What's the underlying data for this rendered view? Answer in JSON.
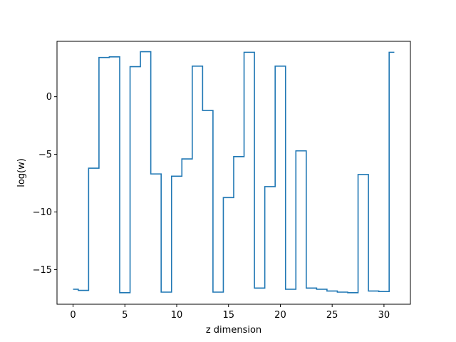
{
  "chart_data": {
    "type": "line",
    "drawstyle": "steps-mid",
    "xlabel": "z dimension",
    "ylabel": "log(w)",
    "xlim": [
      -1.55,
      32.55
    ],
    "ylim": [
      -18.0,
      4.8
    ],
    "xticks": [
      0,
      5,
      10,
      15,
      20,
      25,
      30
    ],
    "xtick_labels": [
      "0",
      "5",
      "10",
      "15",
      "20",
      "25",
      "30"
    ],
    "yticks": [
      -15,
      -10,
      -5,
      0
    ],
    "ytick_labels": [
      "−15",
      "−10",
      "−5",
      "0"
    ],
    "grid": false,
    "series": [
      {
        "color": "#1f77b4",
        "x": [
          0,
          1,
          2,
          3,
          4,
          5,
          6,
          7,
          8,
          9,
          10,
          11,
          12,
          13,
          14,
          15,
          16,
          17,
          18,
          19,
          20,
          21,
          22,
          23,
          24,
          25,
          26,
          27,
          28,
          29,
          30,
          31
        ],
        "y": [
          -16.7,
          -16.8,
          -6.2,
          3.4,
          3.45,
          -17.0,
          2.6,
          3.9,
          -6.7,
          -16.95,
          -6.9,
          -5.4,
          2.65,
          -1.2,
          -16.95,
          -8.75,
          -5.2,
          3.85,
          -16.6,
          -7.8,
          2.65,
          -16.7,
          -4.7,
          -16.6,
          -16.7,
          -16.85,
          -16.95,
          -17.0,
          -6.75,
          -16.85,
          -16.9,
          3.85
        ]
      }
    ]
  }
}
